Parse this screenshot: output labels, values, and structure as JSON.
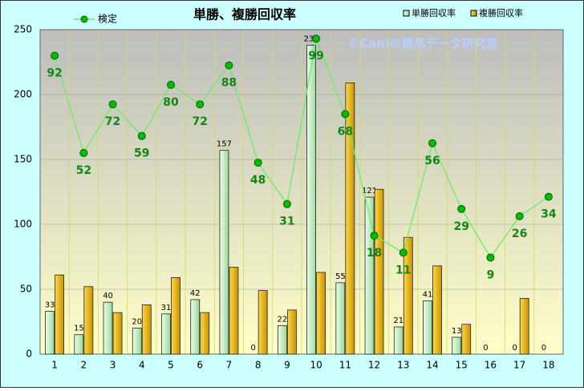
{
  "chart_data": {
    "type": "bar",
    "title": "単勝、複勝回収率",
    "watermark": "©Caniの競馬データ研究室",
    "categories": [
      "1",
      "2",
      "3",
      "4",
      "5",
      "6",
      "7",
      "8",
      "9",
      "10",
      "11",
      "12",
      "13",
      "14",
      "15",
      "16",
      "17",
      "18"
    ],
    "series": [
      {
        "name": "単勝回収率",
        "type": "bar",
        "color": "#c8f0c0",
        "show_labels": true,
        "values": [
          33,
          15,
          40,
          20,
          31,
          42,
          157,
          0,
          22,
          238,
          55,
          121,
          21,
          41,
          13,
          0,
          0,
          0
        ]
      },
      {
        "name": "複勝回収率",
        "type": "bar",
        "color": "#e8b400",
        "show_labels": false,
        "values": [
          61,
          52,
          32,
          38,
          59,
          32,
          67,
          49,
          34,
          63,
          209,
          127,
          90,
          68,
          23,
          0,
          43,
          0
        ]
      },
      {
        "name": "検定",
        "type": "line",
        "axis": "y2",
        "color": "#66ee66",
        "marker_color": "#00bb00",
        "show_labels": true,
        "values": [
          92,
          52,
          72,
          59,
          80,
          72,
          88,
          48,
          31,
          99,
          68,
          18,
          11,
          56,
          29,
          9,
          26,
          34
        ]
      }
    ],
    "ylim": [
      0,
      250
    ],
    "yticks": [
      0,
      50,
      100,
      150,
      200,
      250
    ],
    "y2lim": [
      -30.7,
      102.7
    ],
    "grid": true
  }
}
